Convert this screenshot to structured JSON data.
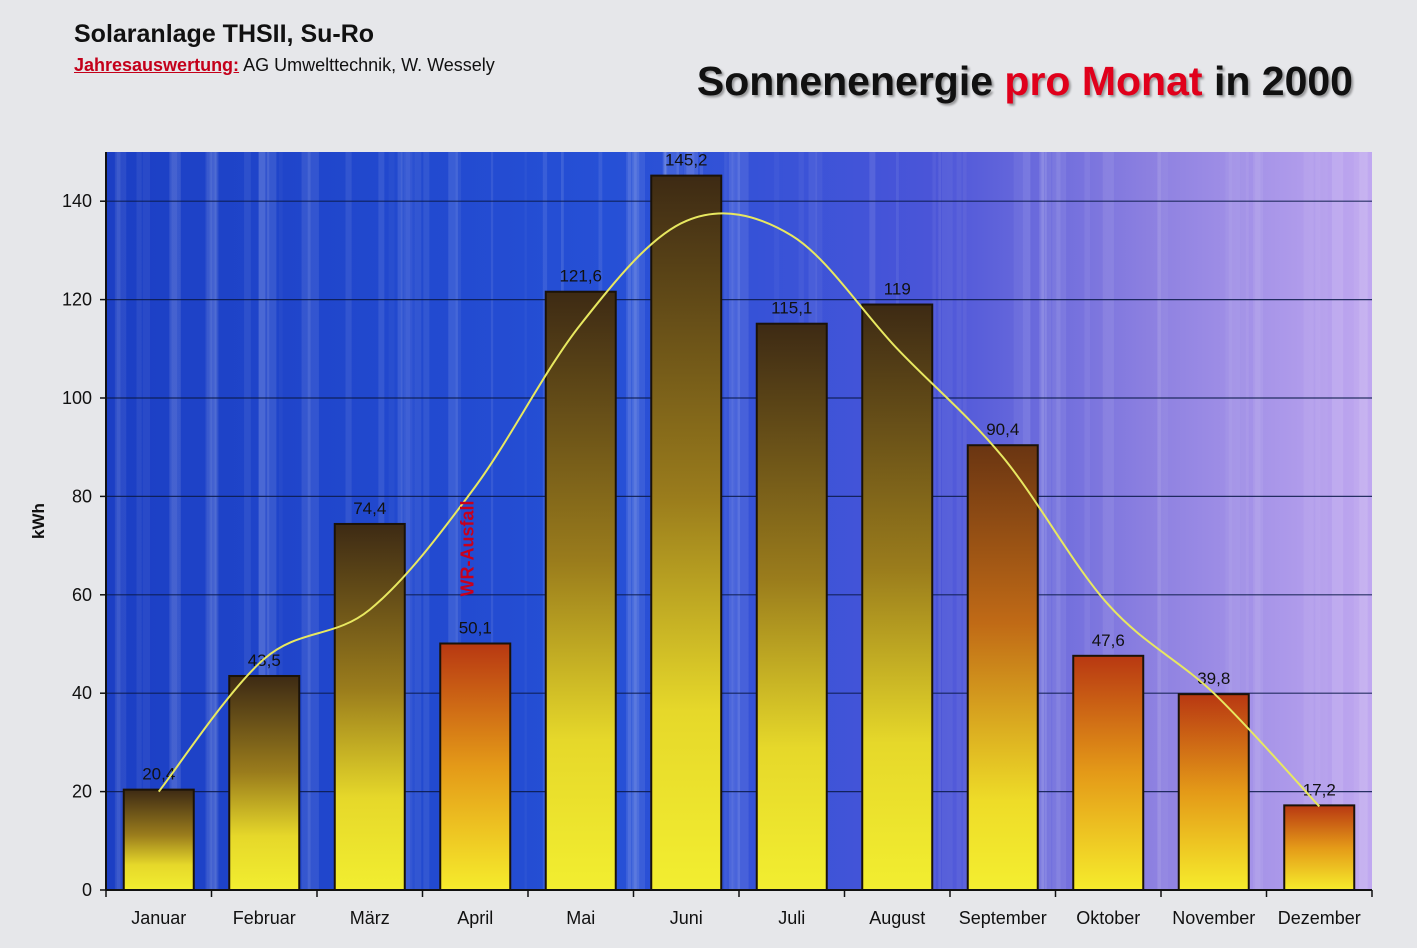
{
  "header": {
    "title": "Solaranlage THSII, Su-Ro",
    "subtitle_label": "Jahresauswertung:",
    "subtitle_text": " AG Umwelttechnik, W. Wessely"
  },
  "chart_title": {
    "part1": "Sonnenenergie ",
    "part2": "pro Monat",
    "part3": " in 2000"
  },
  "chart_data": {
    "type": "bar",
    "title": "Sonnenenergie pro Monat in 2000",
    "ylabel": "kWh",
    "xlabel": "",
    "ylim": [
      0,
      150
    ],
    "yticks": [
      0,
      20,
      40,
      60,
      80,
      100,
      120,
      140
    ],
    "grid": true,
    "categories": [
      "Januar",
      "Februar",
      "März",
      "April",
      "Mai",
      "Juni",
      "Juli",
      "August",
      "September",
      "Oktober",
      "November",
      "Dezember"
    ],
    "values": [
      20.4,
      43.5,
      74.4,
      50.1,
      121.6,
      145.2,
      115.1,
      119,
      90.4,
      47.6,
      39.8,
      17.2
    ],
    "value_labels": [
      "20,4",
      "43,5",
      "74,4",
      "50,1",
      "121,6",
      "145,2",
      "115,1",
      "119",
      "90,4",
      "47,6",
      "39,8",
      "17,2"
    ],
    "trendline": {
      "type": "smooth",
      "color": "#e8e860",
      "points": [
        20,
        47,
        57,
        82,
        115,
        136,
        133,
        110,
        88,
        58,
        40,
        17
      ]
    },
    "annotation": {
      "text": "WR-Ausfall",
      "category": "April",
      "color": "#c8001c"
    }
  }
}
